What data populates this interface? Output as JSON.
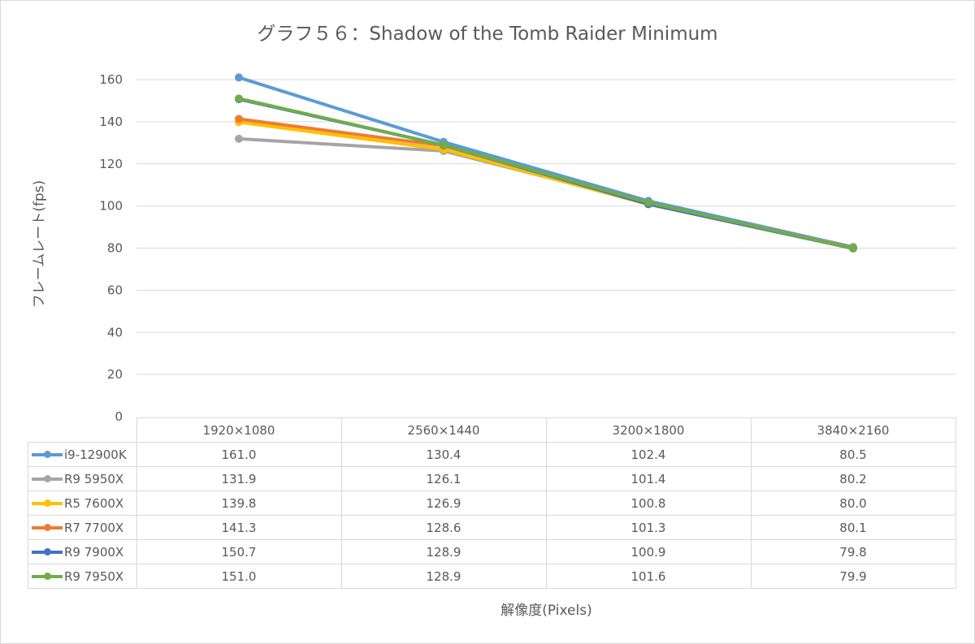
{
  "chart_data": {
    "type": "line",
    "title": "グラフ５６：Shadow of the Tomb Raider Minimum",
    "xlabel": "解像度(Pixels)",
    "ylabel": "フレームレート(fps)",
    "ylim": [
      0,
      160
    ],
    "yticks": [
      "0",
      "20",
      "40",
      "60",
      "80",
      "100",
      "120",
      "140",
      "160"
    ],
    "grid": true,
    "legend": "data-table",
    "categories": [
      "1920×1080",
      "2560×1440",
      "3200×1800",
      "3840×2160"
    ],
    "series": [
      {
        "name": "i9-12900K",
        "color": "#5b9bd5",
        "values": [
          161.0,
          130.4,
          102.4,
          80.5
        ],
        "labels": [
          "161.0",
          "130.4",
          "102.4",
          "80.5"
        ]
      },
      {
        "name": "R9 5950X",
        "color": "#a5a5a5",
        "values": [
          131.9,
          126.1,
          101.4,
          80.2
        ],
        "labels": [
          "131.9",
          "126.1",
          "101.4",
          "80.2"
        ]
      },
      {
        "name": "R5 7600X",
        "color": "#ffc000",
        "values": [
          139.8,
          126.9,
          100.8,
          80.0
        ],
        "labels": [
          "139.8",
          "126.9",
          "100.8",
          "80.0"
        ]
      },
      {
        "name": "R7 7700X",
        "color": "#ed7d31",
        "values": [
          141.3,
          128.6,
          101.3,
          80.1
        ],
        "labels": [
          "141.3",
          "128.6",
          "101.3",
          "80.1"
        ]
      },
      {
        "name": "R9 7900X",
        "color": "#4472c4",
        "values": [
          150.7,
          128.9,
          100.9,
          79.8
        ],
        "labels": [
          "150.7",
          "128.9",
          "100.9",
          "79.8"
        ]
      },
      {
        "name": "R9 7950X",
        "color": "#70ad47",
        "values": [
          151.0,
          128.9,
          101.6,
          79.9
        ],
        "labels": [
          "151.0",
          "128.9",
          "101.6",
          "79.9"
        ]
      }
    ]
  }
}
